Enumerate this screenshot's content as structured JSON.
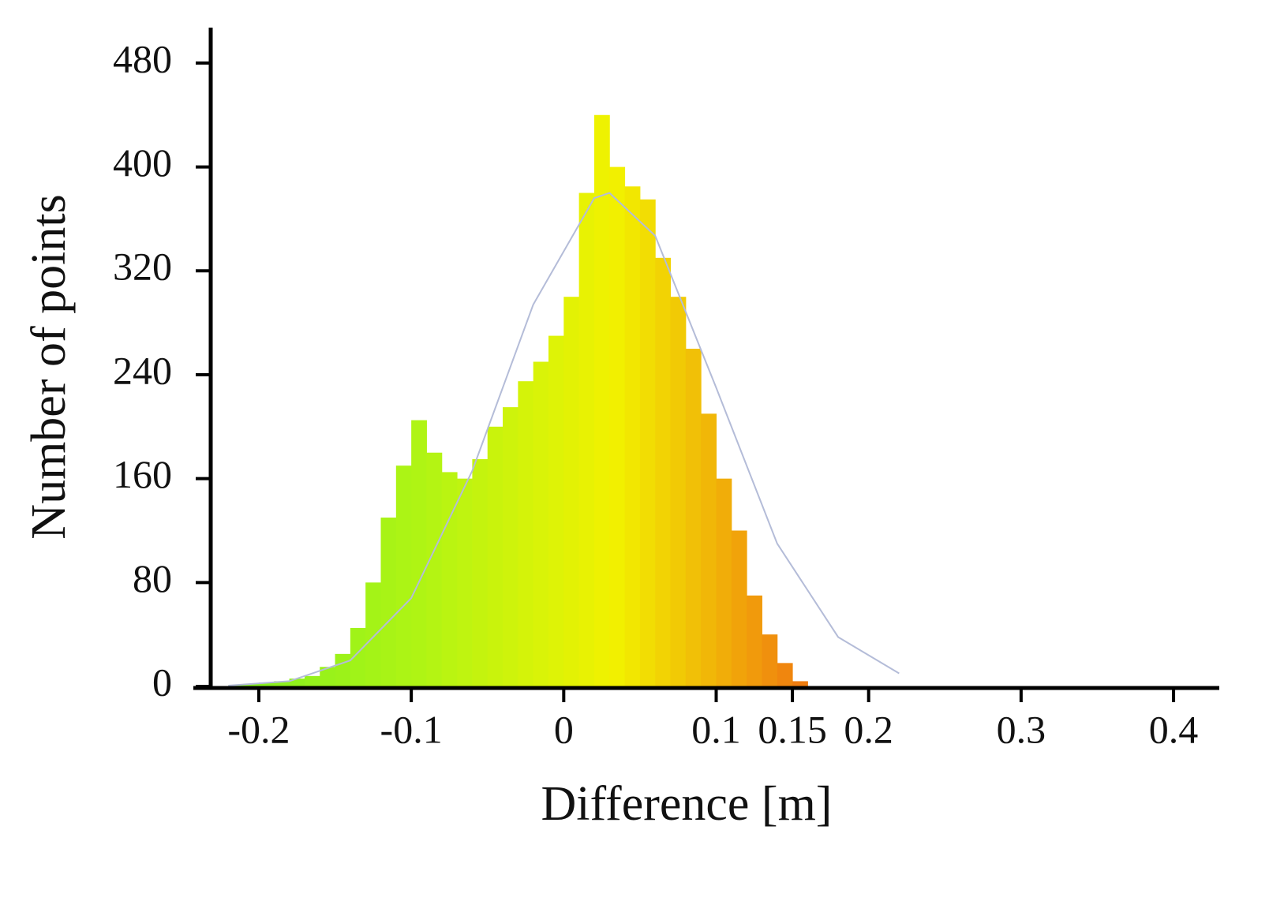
{
  "chart_data": {
    "type": "histogram",
    "x_label": "Difference [m]",
    "y_label": "Number of points",
    "bins": [
      -0.22,
      -0.21,
      -0.2,
      -0.19,
      -0.18,
      -0.17,
      -0.16,
      -0.15,
      -0.14,
      -0.13,
      -0.12,
      -0.11,
      -0.1,
      -0.09,
      -0.08,
      -0.07,
      -0.06,
      -0.05,
      -0.04,
      -0.03,
      -0.02,
      -0.01,
      0,
      0.01,
      0.02,
      0.03,
      0.04,
      0.05,
      0.06,
      0.07,
      0.08,
      0.09,
      0.1,
      0.11,
      0.12,
      0.13,
      0.14,
      0.15,
      0.16
    ],
    "values": [
      1,
      2,
      3,
      4,
      6,
      8,
      15,
      25,
      45,
      80,
      130,
      170,
      205,
      180,
      165,
      160,
      175,
      200,
      215,
      235,
      250,
      270,
      300,
      380,
      440,
      400,
      385,
      375,
      330,
      300,
      260,
      210,
      160,
      120,
      70,
      40,
      18,
      4
    ],
    "colors": [
      "#80f020",
      "#b0f414",
      "#f2f200",
      "#f07810"
    ],
    "fit_curve": {
      "color": "#b4bcd8",
      "x": [
        -0.22,
        -0.18,
        -0.14,
        -0.1,
        -0.06,
        -0.02,
        0.02,
        0.03,
        0.06,
        0.1,
        0.14,
        0.18,
        0.22
      ],
      "values": [
        0.6,
        4,
        20,
        68,
        166,
        294,
        376,
        380,
        347,
        230,
        110,
        38,
        10
      ]
    },
    "xlim": [
      -0.23,
      0.43
    ],
    "xticks": [
      -0.2,
      -0.1,
      0,
      0.1,
      0.15,
      0.2,
      0.3,
      0.4
    ],
    "ylim": [
      0,
      500
    ],
    "yticks": [
      0,
      80,
      160,
      240,
      320,
      400,
      480
    ]
  }
}
